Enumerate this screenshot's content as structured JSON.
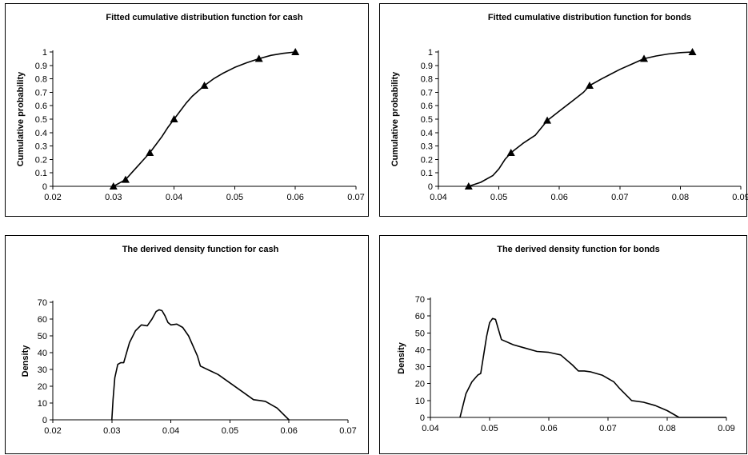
{
  "chart_data": [
    {
      "type": "line",
      "title": "Fitted cumulative distribution function for cash",
      "xlabel": "",
      "ylabel": "Cumulative probability",
      "xlim": [
        0.02,
        0.07
      ],
      "ylim": [
        0,
        1
      ],
      "x_ticks": [
        "0.02",
        "0.03",
        "0.04",
        "0.05",
        "0.06",
        "0.07"
      ],
      "y_ticks": [
        "0",
        "0.1",
        "0.2",
        "0.3",
        "0.4",
        "0.5",
        "0.6",
        "0.7",
        "0.8",
        "0.9",
        "1"
      ],
      "curve": {
        "x": [
          0.03,
          0.031,
          0.032,
          0.033,
          0.034,
          0.035,
          0.036,
          0.037,
          0.038,
          0.039,
          0.04,
          0.041,
          0.042,
          0.043,
          0.044,
          0.045,
          0.0465,
          0.048,
          0.05,
          0.052,
          0.054,
          0.056,
          0.058,
          0.06
        ],
        "y": [
          0.0,
          0.025,
          0.05,
          0.1,
          0.15,
          0.2,
          0.25,
          0.31,
          0.37,
          0.44,
          0.5,
          0.56,
          0.62,
          0.67,
          0.71,
          0.75,
          0.8,
          0.84,
          0.885,
          0.92,
          0.95,
          0.975,
          0.99,
          1.0
        ]
      },
      "markers": {
        "x": [
          0.03,
          0.032,
          0.036,
          0.04,
          0.045,
          0.054,
          0.06
        ],
        "y": [
          0.0,
          0.05,
          0.25,
          0.5,
          0.75,
          0.95,
          1.0
        ]
      }
    },
    {
      "type": "line",
      "title": "Fitted cumulative distribution function for bonds",
      "xlabel": "",
      "ylabel": "Cumulative probability",
      "xlim": [
        0.04,
        0.09
      ],
      "ylim": [
        0,
        1
      ],
      "x_ticks": [
        "0.04",
        "0.05",
        "0.06",
        "0.07",
        "0.08",
        "0.09"
      ],
      "y_ticks": [
        "0",
        "0.1",
        "0.2",
        "0.3",
        "0.4",
        "0.5",
        "0.6",
        "0.7",
        "0.8",
        "0.9",
        "1"
      ],
      "curve": {
        "x": [
          0.045,
          0.047,
          0.049,
          0.05,
          0.051,
          0.052,
          0.054,
          0.056,
          0.058,
          0.06,
          0.062,
          0.064,
          0.065,
          0.067,
          0.07,
          0.072,
          0.074,
          0.076,
          0.078,
          0.08,
          0.082
        ],
        "y": [
          0.0,
          0.03,
          0.08,
          0.13,
          0.2,
          0.25,
          0.32,
          0.38,
          0.49,
          0.56,
          0.63,
          0.7,
          0.75,
          0.8,
          0.87,
          0.91,
          0.95,
          0.97,
          0.985,
          0.995,
          1.0
        ]
      },
      "markers": {
        "x": [
          0.045,
          0.052,
          0.058,
          0.065,
          0.074,
          0.082
        ],
        "y": [
          0.0,
          0.25,
          0.49,
          0.75,
          0.95,
          1.0
        ]
      }
    },
    {
      "type": "line",
      "title": "The derived density function for cash",
      "xlabel": "",
      "ylabel": "Density",
      "xlim": [
        0.02,
        0.07
      ],
      "ylim": [
        0,
        70
      ],
      "x_ticks": [
        "0.02",
        "0.03",
        "0.04",
        "0.05",
        "0.06",
        "0.07"
      ],
      "y_ticks": [
        "0",
        "10",
        "20",
        "30",
        "40",
        "50",
        "60",
        "70"
      ],
      "curve": {
        "x": [
          0.03,
          0.0302,
          0.0305,
          0.031,
          0.0315,
          0.032,
          0.033,
          0.034,
          0.035,
          0.036,
          0.0368,
          0.0375,
          0.038,
          0.0385,
          0.039,
          0.0395,
          0.04,
          0.041,
          0.042,
          0.043,
          0.0445,
          0.045,
          0.0465,
          0.048,
          0.05,
          0.052,
          0.054,
          0.055,
          0.056,
          0.058,
          0.06
        ],
        "y": [
          0,
          12,
          25,
          33,
          34,
          34,
          46,
          53,
          56.5,
          56,
          60,
          64.5,
          65.5,
          65,
          62,
          58,
          56.5,
          57,
          55,
          50,
          38,
          32,
          29.5,
          27,
          22,
          17,
          12,
          11.5,
          11,
          7,
          0
        ]
      }
    },
    {
      "type": "line",
      "title": "The derived density function for bonds",
      "xlabel": "",
      "ylabel": "Density",
      "xlim": [
        0.04,
        0.09
      ],
      "ylim": [
        0,
        70
      ],
      "x_ticks": [
        "0.04",
        "0.05",
        "0.06",
        "0.07",
        "0.08",
        "0.09"
      ],
      "y_ticks": [
        "0",
        "10",
        "20",
        "30",
        "40",
        "50",
        "60",
        "70"
      ],
      "curve": {
        "x": [
          0.045,
          0.046,
          0.047,
          0.048,
          0.0485,
          0.049,
          0.0495,
          0.05,
          0.0505,
          0.051,
          0.0515,
          0.052,
          0.054,
          0.056,
          0.058,
          0.06,
          0.062,
          0.064,
          0.065,
          0.066,
          0.067,
          0.069,
          0.071,
          0.072,
          0.074,
          0.076,
          0.078,
          0.08,
          0.082,
          0.09
        ],
        "y": [
          0,
          14,
          21,
          25,
          26,
          37,
          48,
          56,
          58.5,
          58,
          52,
          46,
          43,
          41,
          39,
          38.5,
          37,
          31,
          27.5,
          27.5,
          27,
          25,
          21,
          17,
          10,
          9,
          7,
          4,
          0,
          0
        ]
      }
    }
  ]
}
